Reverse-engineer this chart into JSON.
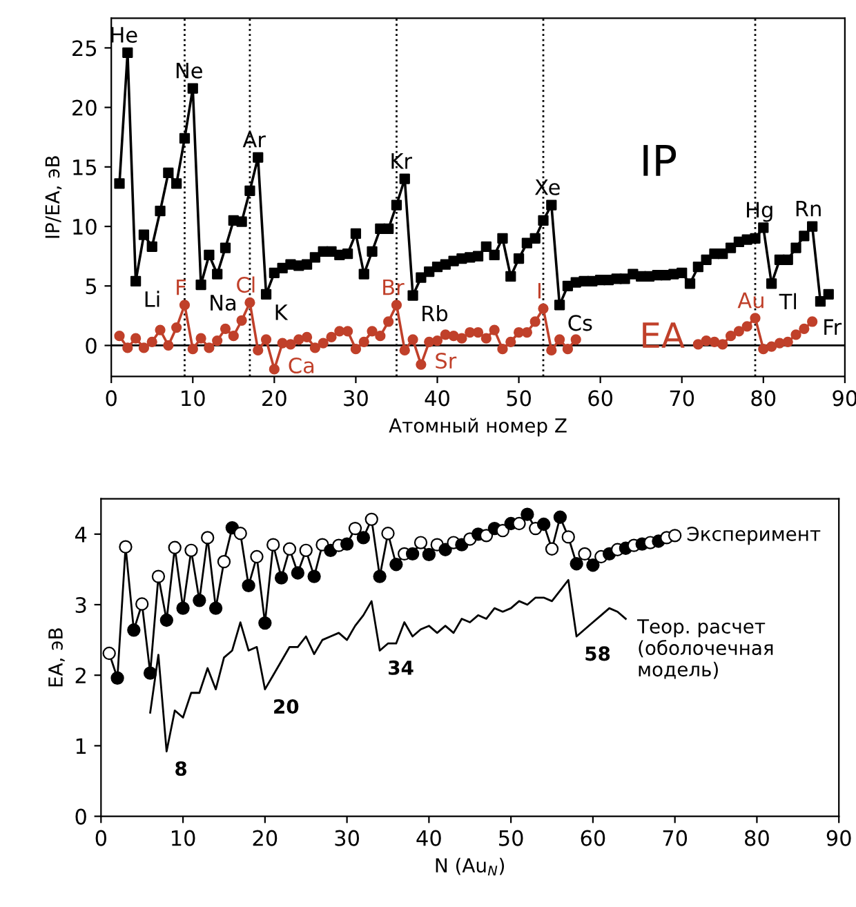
{
  "chart_data": [
    {
      "type": "line",
      "xlabel": "Атомный номер Z",
      "ylabel": "IP/EA, эВ",
      "xlim": [
        0,
        90
      ],
      "ylim": [
        -2.6,
        27.5
      ],
      "xticks": [
        0,
        10,
        20,
        30,
        40,
        50,
        60,
        70,
        80,
        90
      ],
      "yticks": [
        0,
        5,
        10,
        15,
        20,
        25
      ],
      "grid": false,
      "legend": false,
      "x": [
        1,
        2,
        3,
        4,
        5,
        6,
        7,
        8,
        9,
        10,
        11,
        12,
        13,
        14,
        15,
        16,
        17,
        18,
        19,
        20,
        21,
        22,
        23,
        24,
        25,
        26,
        27,
        28,
        29,
        30,
        31,
        32,
        33,
        34,
        35,
        36,
        37,
        38,
        39,
        40,
        41,
        42,
        43,
        44,
        45,
        46,
        47,
        48,
        49,
        50,
        51,
        52,
        53,
        54,
        55,
        56,
        57,
        58,
        59,
        60,
        61,
        62,
        63,
        64,
        65,
        66,
        67,
        68,
        69,
        70,
        71,
        72,
        73,
        74,
        75,
        76,
        77,
        78,
        79,
        80,
        81,
        82,
        83,
        84,
        85,
        86,
        87,
        88
      ],
      "series": [
        {
          "name": "IP",
          "color": "#000000",
          "marker": "square",
          "values": [
            13.6,
            24.6,
            5.4,
            9.3,
            8.3,
            11.3,
            14.5,
            13.6,
            17.4,
            21.6,
            5.1,
            7.6,
            6.0,
            8.2,
            10.5,
            10.4,
            13.0,
            15.8,
            4.3,
            6.1,
            6.5,
            6.8,
            6.7,
            6.8,
            7.4,
            7.9,
            7.9,
            7.6,
            7.7,
            9.4,
            6.0,
            7.9,
            9.8,
            9.8,
            11.8,
            14.0,
            4.2,
            5.7,
            6.2,
            6.6,
            6.8,
            7.1,
            7.3,
            7.4,
            7.5,
            8.3,
            7.6,
            9.0,
            5.8,
            7.3,
            8.6,
            9.0,
            10.5,
            11.8,
            3.4,
            5.0,
            5.3,
            5.4,
            5.4,
            5.5,
            5.5,
            5.6,
            5.6,
            6.0,
            5.8,
            5.8,
            5.9,
            5.9,
            6.0,
            6.1,
            5.2,
            6.6,
            7.2,
            7.7,
            7.7,
            8.2,
            8.7,
            8.9,
            9.0,
            9.9,
            5.2,
            7.2,
            7.2,
            8.2,
            9.2,
            10.0,
            3.7,
            4.3
          ]
        },
        {
          "name": "EA",
          "color": "#c0402a",
          "marker": "circle",
          "values": [
            0.8,
            -0.2,
            0.6,
            -0.2,
            0.3,
            1.3,
            0.0,
            1.5,
            3.4,
            -0.3,
            0.6,
            -0.2,
            0.4,
            1.4,
            0.8,
            2.1,
            3.6,
            -0.4,
            0.5,
            -2.0,
            0.2,
            0.1,
            0.5,
            0.7,
            -0.2,
            0.2,
            0.7,
            1.2,
            1.2,
            -0.3,
            0.3,
            1.2,
            0.8,
            2.0,
            3.4,
            -0.4,
            0.5,
            -1.6,
            0.3,
            0.4,
            0.9,
            0.8,
            0.6,
            1.1,
            1.1,
            0.6,
            1.3,
            -0.3,
            0.3,
            1.1,
            1.1,
            2.0,
            3.1,
            -0.4,
            0.5,
            -0.3,
            0.5,
            null,
            null,
            null,
            null,
            null,
            null,
            null,
            null,
            null,
            null,
            null,
            null,
            null,
            null,
            0.1,
            0.4,
            0.3,
            0.1,
            0.8,
            1.2,
            1.6,
            2.3,
            -0.3,
            -0.1,
            0.2,
            0.3,
            0.9,
            1.4,
            2.0,
            null,
            null
          ]
        }
      ],
      "ref_lines": [
        {
          "axis": "y",
          "value": 0,
          "color": "#000000",
          "line_style": "solid"
        },
        {
          "axis": "x",
          "value": 9,
          "color": "#000000",
          "line_style": "dotted"
        },
        {
          "axis": "x",
          "value": 17,
          "color": "#000000",
          "line_style": "dotted"
        },
        {
          "axis": "x",
          "value": 35,
          "color": "#000000",
          "line_style": "dotted"
        },
        {
          "axis": "x",
          "value": 53,
          "color": "#000000",
          "line_style": "dotted"
        },
        {
          "axis": "x",
          "value": 79,
          "color": "#000000",
          "line_style": "dotted"
        }
      ],
      "annotations": [
        {
          "text": "He",
          "x": 2,
          "y": 24.6
        },
        {
          "text": "Li",
          "x": 3,
          "y": 5.4
        },
        {
          "text": "Ne",
          "x": 10,
          "y": 21.6
        },
        {
          "text": "Na",
          "x": 11,
          "y": 5.1
        },
        {
          "text": "Ar",
          "x": 18,
          "y": 15.8
        },
        {
          "text": "K",
          "x": 19,
          "y": 4.3
        },
        {
          "text": "Kr",
          "x": 36,
          "y": 14.0
        },
        {
          "text": "Rb",
          "x": 37,
          "y": 4.2
        },
        {
          "text": "Xe",
          "x": 54,
          "y": 11.8
        },
        {
          "text": "Cs",
          "x": 55,
          "y": 3.4
        },
        {
          "text": "Hg",
          "x": 80,
          "y": 9.9
        },
        {
          "text": "Tl",
          "x": 81,
          "y": 5.2
        },
        {
          "text": "Rn",
          "x": 86,
          "y": 10.0
        },
        {
          "text": "Fr",
          "x": 87,
          "y": 3.7
        },
        {
          "text": "F",
          "x": 9,
          "y": 3.4
        },
        {
          "text": "Cl",
          "x": 17,
          "y": 3.6
        },
        {
          "text": "Br",
          "x": 35,
          "y": 3.4
        },
        {
          "text": "I",
          "x": 53,
          "y": 3.1
        },
        {
          "text": "Au",
          "x": 79,
          "y": 2.3
        },
        {
          "text": "Ca",
          "x": 20,
          "y": -2.0
        },
        {
          "text": "Sr",
          "x": 38,
          "y": -1.6
        }
      ]
    },
    {
      "type": "line",
      "xlabel": "N (Au$_{N}$)",
      "ylabel": "EA, эВ",
      "xlim": [
        0,
        90
      ],
      "ylim": [
        0,
        4.5
      ],
      "xticks": [
        0,
        10,
        20,
        30,
        40,
        50,
        60,
        70,
        80,
        90
      ],
      "yticks": [
        0,
        1,
        2,
        3,
        4
      ],
      "grid": false,
      "legend": false,
      "series": [
        {
          "name": "Эксперимент",
          "color": "#000000",
          "marker": "circle",
          "x": [
            1,
            2,
            3,
            4,
            5,
            6,
            7,
            8,
            9,
            10,
            11,
            12,
            13,
            14,
            15,
            16,
            17,
            18,
            19,
            20,
            21,
            22,
            23,
            24,
            25,
            26,
            27,
            28,
            29,
            30,
            31,
            32,
            33,
            34,
            35,
            36,
            37,
            38,
            39,
            40,
            41,
            42,
            43,
            44,
            45,
            46,
            47,
            48,
            49,
            50,
            51,
            52,
            53,
            54,
            55,
            56,
            57,
            58,
            59,
            60,
            61,
            62,
            63,
            64,
            65,
            66,
            67,
            68,
            69,
            70
          ],
          "values": [
            2.31,
            1.96,
            3.82,
            2.64,
            3.01,
            2.03,
            3.4,
            2.78,
            3.81,
            2.95,
            3.77,
            3.06,
            3.95,
            2.95,
            3.61,
            4.09,
            4.01,
            3.27,
            3.68,
            2.74,
            3.85,
            3.38,
            3.79,
            3.45,
            3.77,
            3.4,
            3.85,
            3.77,
            3.84,
            3.86,
            4.08,
            3.95,
            4.21,
            3.4,
            4.01,
            3.57,
            3.72,
            3.72,
            3.88,
            3.71,
            3.85,
            3.78,
            3.88,
            3.85,
            3.93,
            4.0,
            3.98,
            4.08,
            4.05,
            4.15,
            4.15,
            4.28,
            4.08,
            4.14,
            3.79,
            4.24,
            3.96,
            3.58,
            3.72,
            3.56,
            3.68,
            3.72,
            3.78,
            3.8,
            3.84,
            3.86,
            3.88,
            3.9,
            3.95,
            3.98
          ],
          "colors": [
            "#ffffff",
            "#000000",
            "#ffffff",
            "#000000",
            "#ffffff",
            "#000000",
            "#ffffff",
            "#000000",
            "#ffffff",
            "#000000",
            "#ffffff",
            "#000000",
            "#ffffff",
            "#000000",
            "#ffffff",
            "#000000",
            "#ffffff",
            "#000000",
            "#ffffff",
            "#000000",
            "#ffffff",
            "#000000",
            "#ffffff",
            "#000000",
            "#ffffff",
            "#000000",
            "#ffffff",
            "#000000",
            "#ffffff",
            "#000000",
            "#ffffff",
            "#000000",
            "#ffffff",
            "#000000",
            "#ffffff",
            "#000000",
            "#ffffff",
            "#000000",
            "#ffffff",
            "#000000",
            "#ffffff",
            "#000000",
            "#ffffff",
            "#000000",
            "#ffffff",
            "#000000",
            "#ffffff",
            "#000000",
            "#ffffff",
            "#000000",
            "#ffffff",
            "#000000",
            "#ffffff",
            "#000000",
            "#ffffff",
            "#000000",
            "#ffffff",
            "#000000",
            "#ffffff",
            "#000000",
            "#ffffff",
            "#000000",
            "#ffffff",
            "#000000",
            "#ffffff",
            "#000000",
            "#ffffff",
            "#000000",
            "#ffffff",
            "#ffffff"
          ]
        },
        {
          "name": "Теор. расчет\n(оболочечная\nмодель)",
          "color": "#000000",
          "marker": "none",
          "x": [
            6,
            7,
            8,
            9,
            10,
            11,
            12,
            13,
            14,
            15,
            16,
            17,
            18,
            19,
            20,
            21,
            22,
            23,
            24,
            25,
            26,
            27,
            28,
            29,
            30,
            31,
            32,
            33,
            34,
            35,
            36,
            37,
            38,
            39,
            40,
            41,
            42,
            43,
            44,
            45,
            46,
            47,
            48,
            49,
            50,
            51,
            52,
            53,
            54,
            55,
            56,
            57,
            58,
            59,
            60,
            61,
            62,
            63,
            64
          ],
          "values": [
            1.47,
            2.29,
            0.92,
            1.5,
            1.4,
            1.75,
            1.75,
            2.1,
            1.8,
            2.25,
            2.35,
            2.75,
            2.35,
            2.4,
            1.8,
            2.0,
            2.2,
            2.4,
            2.4,
            2.55,
            2.3,
            2.5,
            2.55,
            2.6,
            2.5,
            2.7,
            2.85,
            3.05,
            2.35,
            2.45,
            2.45,
            2.75,
            2.55,
            2.65,
            2.7,
            2.6,
            2.7,
            2.6,
            2.8,
            2.75,
            2.85,
            2.8,
            2.95,
            2.9,
            2.95,
            3.05,
            3.0,
            3.1,
            3.1,
            3.05,
            3.2,
            3.35,
            2.55,
            2.65,
            2.75,
            2.85,
            2.95,
            2.9,
            2.8
          ]
        }
      ],
      "annotations": [
        {
          "text": "8",
          "x": 8,
          "y": 0.92
        },
        {
          "text": "20",
          "x": 20,
          "y": 1.8
        },
        {
          "text": "34",
          "x": 34,
          "y": 2.35
        },
        {
          "text": "58",
          "x": 58,
          "y": 2.55
        }
      ]
    }
  ]
}
